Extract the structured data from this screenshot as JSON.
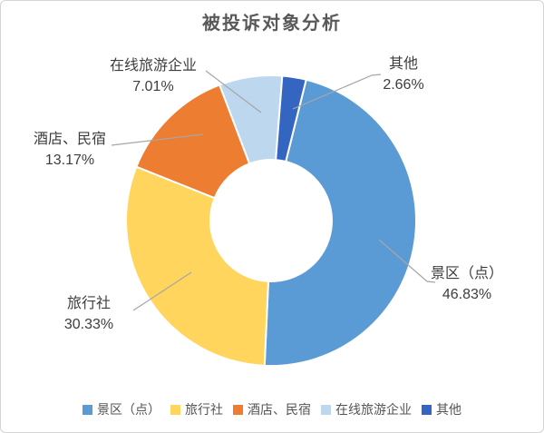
{
  "chart_data": {
    "type": "pie",
    "variant": "donut",
    "title": "被投诉对象分析",
    "slices": [
      {
        "label": "景区（点）",
        "value": 46.83,
        "pct_label": "46.83%",
        "color": "#5B9BD5"
      },
      {
        "label": "旅行社",
        "value": 30.33,
        "pct_label": "30.33%",
        "color": "#FFD55E"
      },
      {
        "label": "酒店、民宿",
        "value": 13.17,
        "pct_label": "13.17%",
        "color": "#ED7D31"
      },
      {
        "label": "在线旅游企业",
        "value": 7.01,
        "pct_label": "7.01%",
        "color": "#BDD7EE"
      },
      {
        "label": "其他",
        "value": 2.66,
        "pct_label": "2.66%",
        "color": "#3465C0"
      }
    ],
    "rotation_deg": 14,
    "inner_radius_ratio": 0.42,
    "legend_position": "bottom",
    "leader_line_color": "#A6A6A6",
    "grid": false
  }
}
